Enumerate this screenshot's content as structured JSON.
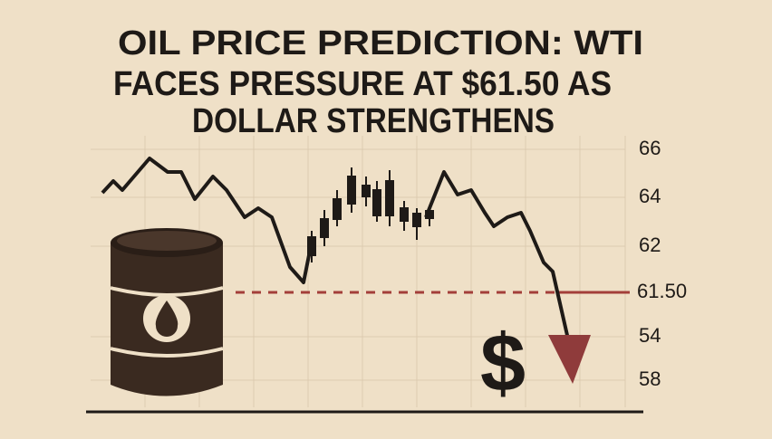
{
  "title": [
    "OIL PRICE PREDICTION: WTI",
    "FACES PRESSURE AT $61.50 AS",
    "DOLLAR STRENGTHENS"
  ],
  "axis_labels": [
    "66",
    "64",
    "62",
    "61.50",
    "54",
    "58"
  ],
  "symbol": "$"
}
